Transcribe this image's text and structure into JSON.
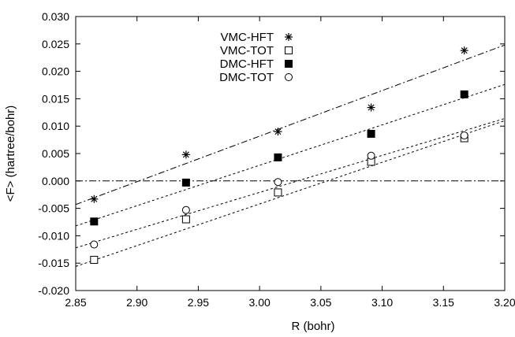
{
  "chart_data": {
    "type": "scatter",
    "xlabel": "R (bohr)",
    "ylabel": "<F> (hartree/bohr)",
    "xlim": [
      2.85,
      3.2
    ],
    "ylim": [
      -0.02,
      0.03
    ],
    "x_ticks": [
      2.85,
      2.9,
      2.95,
      3.0,
      3.05,
      3.1,
      3.15,
      3.2
    ],
    "x_tick_labels": [
      "2.85",
      "2.90",
      "2.95",
      "3.00",
      "3.05",
      "3.10",
      "3.15",
      "3.20"
    ],
    "y_ticks": [
      -0.02,
      -0.015,
      -0.01,
      -0.005,
      0.0,
      0.005,
      0.01,
      0.015,
      0.02,
      0.025,
      0.03
    ],
    "y_tick_labels": [
      "-0.020",
      "-0.015",
      "-0.010",
      "-0.005",
      "0.000",
      "0.005",
      "0.010",
      "0.015",
      "0.020",
      "0.025",
      "0.030"
    ],
    "grid": false,
    "legend_position": "top-center",
    "zero_line": true,
    "series": [
      {
        "name": "VMC-HFT",
        "marker": "asterisk",
        "points": [
          [
            2.865,
            -0.0033
          ],
          [
            2.94,
            0.0048
          ],
          [
            3.015,
            0.009
          ],
          [
            3.091,
            0.0134
          ],
          [
            3.167,
            0.0238
          ]
        ],
        "fit": [
          [
            2.85,
            -0.0043
          ],
          [
            3.2,
            0.0248
          ]
        ]
      },
      {
        "name": "VMC-TOT",
        "marker": "open-square",
        "points": [
          [
            2.865,
            -0.0144
          ],
          [
            2.94,
            -0.007
          ],
          [
            3.015,
            -0.0021
          ],
          [
            3.091,
            0.0035
          ],
          [
            3.167,
            0.0078
          ]
        ],
        "fit": [
          [
            2.85,
            -0.0156
          ],
          [
            3.2,
            0.011
          ]
        ]
      },
      {
        "name": "DMC-HFT",
        "marker": "filled-square",
        "points": [
          [
            2.865,
            -0.0074
          ],
          [
            2.94,
            -0.0003
          ],
          [
            3.015,
            0.0043
          ],
          [
            3.091,
            0.0086
          ],
          [
            3.167,
            0.0158
          ]
        ],
        "fit": [
          [
            2.85,
            -0.0082
          ],
          [
            3.2,
            0.0176
          ]
        ]
      },
      {
        "name": "DMC-TOT",
        "marker": "open-circle",
        "points": [
          [
            2.865,
            -0.0116
          ],
          [
            2.94,
            -0.0053
          ],
          [
            3.015,
            -0.0002
          ],
          [
            3.091,
            0.0046
          ],
          [
            3.167,
            0.0083
          ]
        ],
        "fit": [
          [
            2.85,
            -0.0122
          ],
          [
            3.2,
            0.0114
          ]
        ]
      }
    ]
  }
}
